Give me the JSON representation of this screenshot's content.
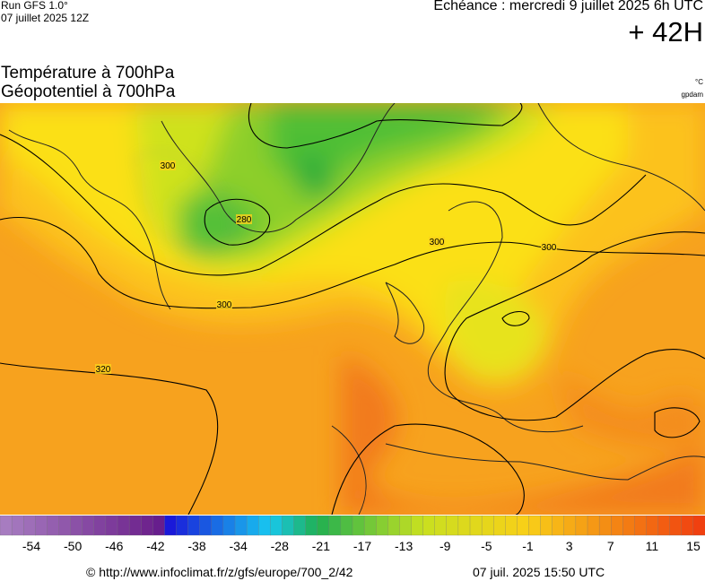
{
  "header": {
    "run": "Run GFS 1.0°",
    "run_date": "07 juillet 2025 12Z",
    "echeance": "Echéance : mercredi 9 juillet 2025 6h UTC",
    "hour": "+ 42H"
  },
  "titles": {
    "temperature": "Température à 700hPa",
    "geopotential": "Géopotentiel à 700hPa",
    "temperature_unit": "°C",
    "geopotential_unit": "gpdam"
  },
  "contours": {
    "labels": [
      "300",
      "280",
      "300",
      "320",
      "300",
      "300"
    ]
  },
  "colorbar": {
    "labels": [
      "-54",
      "-50",
      "-46",
      "-42",
      "-38",
      "-34",
      "-28",
      "-21",
      "-17",
      "-13",
      "-9",
      "-5",
      "-1",
      "3",
      "7",
      "11",
      "15"
    ]
  },
  "footer": {
    "url": "© http://www.infoclimat.fr/z/gfs/europe/700_2/42",
    "timestamp": "07 juil. 2025 15:50 UTC"
  }
}
